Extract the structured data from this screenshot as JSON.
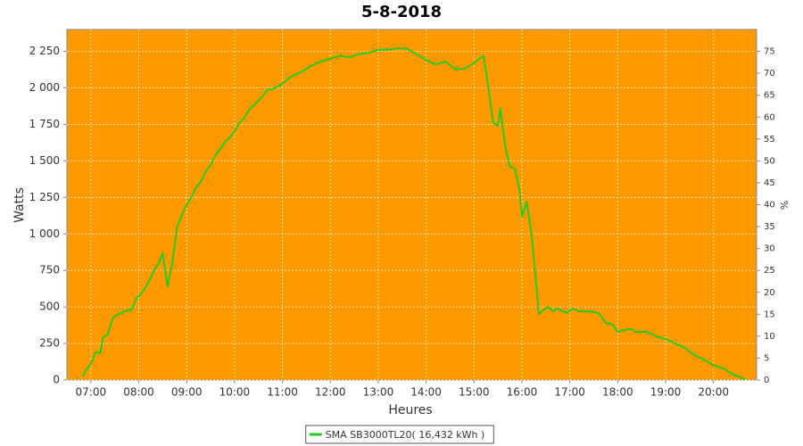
{
  "chart_data": {
    "type": "line",
    "title": "5-8-2018",
    "x_label": "Heures",
    "y_label": "Watts",
    "y2_label": "%",
    "xlim": [
      6.5,
      20.9
    ],
    "xticks": [
      {
        "value": 7,
        "label": "07:00"
      },
      {
        "value": 8,
        "label": "08:00"
      },
      {
        "value": 9,
        "label": "09:00"
      },
      {
        "value": 10,
        "label": "10:00"
      },
      {
        "value": 11,
        "label": "11:00"
      },
      {
        "value": 12,
        "label": "12:00"
      },
      {
        "value": 13,
        "label": "13:00"
      },
      {
        "value": 14,
        "label": "14:00"
      },
      {
        "value": 15,
        "label": "15:00"
      },
      {
        "value": 16,
        "label": "16:00"
      },
      {
        "value": 17,
        "label": "17:00"
      },
      {
        "value": 18,
        "label": "18:00"
      },
      {
        "value": 19,
        "label": "19:00"
      },
      {
        "value": 20,
        "label": "20:00"
      }
    ],
    "ylim": [
      0,
      2400
    ],
    "yticks": [
      0,
      250,
      500,
      750,
      {
        "value": 1000,
        "label": "1 000"
      },
      {
        "value": 1250,
        "label": "1 250"
      },
      {
        "value": 1500,
        "label": "1 500"
      },
      {
        "value": 1750,
        "label": "1 750"
      },
      {
        "value": 2000,
        "label": "2 000"
      },
      {
        "value": 2250,
        "label": "2 250"
      }
    ],
    "y2lim": [
      0,
      80
    ],
    "y2ticks": [
      0,
      5,
      10,
      15,
      20,
      25,
      30,
      35,
      40,
      45,
      50,
      55,
      60,
      65,
      70,
      75
    ],
    "grid": true,
    "background": "#ff9900",
    "legend": "bottom",
    "x": [
      6.83,
      6.9,
      7.0,
      7.1,
      7.2,
      7.25,
      7.35,
      7.45,
      7.55,
      7.65,
      7.75,
      7.85,
      7.95,
      8.05,
      8.15,
      8.25,
      8.35,
      8.42,
      8.5,
      8.6,
      8.7,
      8.8,
      8.9,
      9.0,
      9.1,
      9.2,
      9.3,
      9.4,
      9.5,
      9.6,
      9.7,
      9.8,
      9.9,
      10.0,
      10.1,
      10.2,
      10.3,
      10.4,
      10.5,
      10.6,
      10.7,
      10.8,
      10.9,
      11.0,
      11.2,
      11.4,
      11.6,
      11.8,
      12.0,
      12.2,
      12.4,
      12.6,
      12.8,
      13.0,
      13.2,
      13.4,
      13.6,
      13.8,
      14.0,
      14.2,
      14.4,
      14.6,
      14.8,
      15.0,
      15.1,
      15.2,
      15.3,
      15.4,
      15.5,
      15.55,
      15.65,
      15.75,
      15.85,
      15.95,
      16.0,
      16.1,
      16.2,
      16.3,
      16.35,
      16.45,
      16.55,
      16.65,
      16.75,
      16.85,
      16.95,
      17.05,
      17.2,
      17.4,
      17.6,
      17.75,
      17.9,
      18.0,
      18.1,
      18.25,
      18.4,
      18.6,
      18.8,
      19.0,
      19.2,
      19.4,
      19.6,
      19.8,
      20.0,
      20.2,
      20.4,
      20.55,
      20.65
    ],
    "series": [
      {
        "name": "SMA SB3000TL20( 16,432 kWh )",
        "color": "#22cc22",
        "values": [
          25,
          70,
          110,
          190,
          185,
          290,
          310,
          420,
          450,
          460,
          475,
          480,
          560,
          590,
          640,
          700,
          770,
          800,
          870,
          640,
          800,
          1050,
          1130,
          1200,
          1250,
          1320,
          1360,
          1430,
          1470,
          1540,
          1580,
          1630,
          1660,
          1700,
          1760,
          1790,
          1850,
          1880,
          1910,
          1950,
          1990,
          1990,
          2010,
          2030,
          2080,
          2110,
          2150,
          2180,
          2200,
          2220,
          2210,
          2230,
          2240,
          2260,
          2260,
          2270,
          2270,
          2230,
          2190,
          2160,
          2180,
          2130,
          2130,
          2170,
          2200,
          2220,
          2000,
          1760,
          1740,
          1860,
          1600,
          1460,
          1450,
          1300,
          1120,
          1220,
          1000,
          650,
          450,
          480,
          500,
          470,
          490,
          470,
          460,
          490,
          470,
          470,
          460,
          390,
          380,
          330,
          340,
          350,
          330,
          330,
          300,
          280,
          250,
          220,
          170,
          140,
          100,
          80,
          40,
          20,
          5
        ]
      }
    ]
  }
}
